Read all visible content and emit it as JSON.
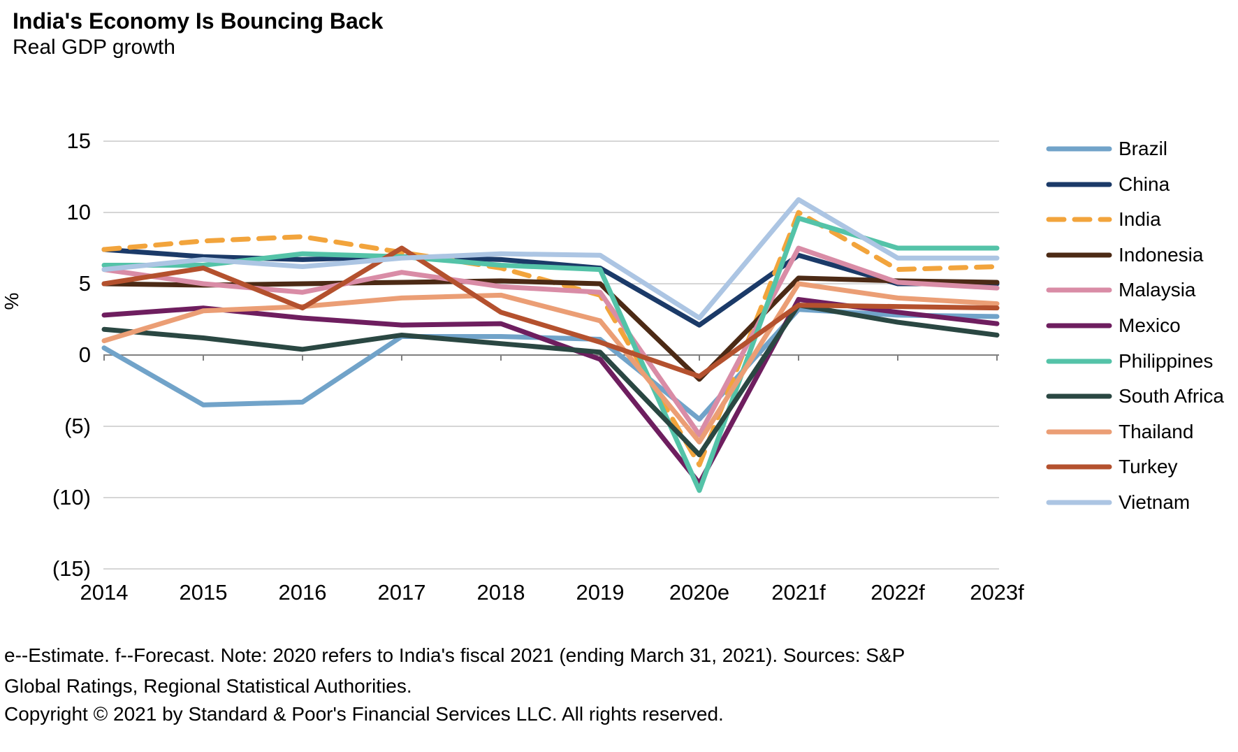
{
  "header": {
    "title": "India's Economy Is Bouncing Back",
    "subtitle": "Real GDP growth"
  },
  "footer": {
    "note_lines": [
      "e--Estimate. f--Forecast. Note: 2020 refers to India's fiscal 2021 (ending March 31, 2021). Sources: S&P",
      "Global Ratings, Regional Statistical Authorities."
    ],
    "copyright": "Copyright © 2021 by Standard & Poor's Financial Services LLC. All rights reserved."
  },
  "colors": {
    "gridline": "#C9C9C9",
    "zero_axis": "#808080",
    "text": "#000000",
    "background": "#FFFFFF"
  },
  "chart_data": {
    "type": "line",
    "title": "India's Economy Is Bouncing Back",
    "subtitle": "Real GDP growth",
    "xlabel": "",
    "ylabel": "%",
    "ylim": [
      -15,
      15
    ],
    "grid": "horizontal",
    "legend_position": "right",
    "categories": [
      "2014",
      "2015",
      "2016",
      "2017",
      "2018",
      "2019",
      "2020e",
      "2021f",
      "2022f",
      "2023f"
    ],
    "yticks": [
      {
        "value": 15,
        "label": "15"
      },
      {
        "value": 10,
        "label": "10"
      },
      {
        "value": 5,
        "label": "5"
      },
      {
        "value": 0,
        "label": "0"
      },
      {
        "value": -5,
        "label": "(5)"
      },
      {
        "value": -10,
        "label": "(10)"
      },
      {
        "value": -15,
        "label": "(15)"
      }
    ],
    "series": [
      {
        "name": "Brazil",
        "color": "#71A3C9",
        "dash": false,
        "values": [
          0.5,
          -3.5,
          -3.3,
          1.3,
          1.3,
          1.1,
          -4.5,
          3.2,
          2.8,
          2.7
        ]
      },
      {
        "name": "China",
        "color": "#1B3A68",
        "dash": false,
        "values": [
          7.4,
          6.9,
          6.7,
          6.9,
          6.7,
          6.1,
          2.1,
          7.0,
          5.0,
          5.0
        ]
      },
      {
        "name": "India",
        "color": "#F2A43C",
        "dash": true,
        "values": [
          7.4,
          8.0,
          8.3,
          7.2,
          6.1,
          4.2,
          -7.7,
          10.0,
          6.0,
          6.2
        ]
      },
      {
        "name": "Indonesia",
        "color": "#4C2A15",
        "dash": false,
        "values": [
          5.0,
          4.9,
          5.0,
          5.1,
          5.2,
          5.0,
          -1.7,
          5.4,
          5.2,
          5.1
        ]
      },
      {
        "name": "Malaysia",
        "color": "#D98CA6",
        "dash": false,
        "values": [
          6.0,
          5.0,
          4.4,
          5.8,
          4.8,
          4.4,
          -5.6,
          7.5,
          5.1,
          4.7
        ]
      },
      {
        "name": "Mexico",
        "color": "#6E1E5F",
        "dash": false,
        "values": [
          2.8,
          3.3,
          2.6,
          2.1,
          2.2,
          -0.3,
          -9.0,
          3.9,
          3.0,
          2.2
        ]
      },
      {
        "name": "Philippines",
        "color": "#54C3A8",
        "dash": false,
        "values": [
          6.3,
          6.3,
          7.1,
          6.9,
          6.3,
          6.0,
          -9.5,
          9.6,
          7.5,
          7.5
        ]
      },
      {
        "name": "South Africa",
        "color": "#2A4742",
        "dash": false,
        "values": [
          1.8,
          1.2,
          0.4,
          1.4,
          0.8,
          0.2,
          -7.0,
          3.5,
          2.3,
          1.4
        ]
      },
      {
        "name": "Thailand",
        "color": "#EB9E75",
        "dash": false,
        "values": [
          1.0,
          3.1,
          3.4,
          4.0,
          4.2,
          2.4,
          -6.1,
          5.0,
          4.0,
          3.6
        ]
      },
      {
        "name": "Turkey",
        "color": "#B4512E",
        "dash": false,
        "values": [
          5.0,
          6.1,
          3.3,
          7.5,
          3.0,
          0.9,
          -1.5,
          3.5,
          3.4,
          3.3
        ]
      },
      {
        "name": "Vietnam",
        "color": "#ACC5E3",
        "dash": false,
        "values": [
          6.0,
          6.7,
          6.2,
          6.8,
          7.1,
          7.0,
          2.6,
          10.9,
          6.8,
          6.8
        ]
      }
    ]
  }
}
